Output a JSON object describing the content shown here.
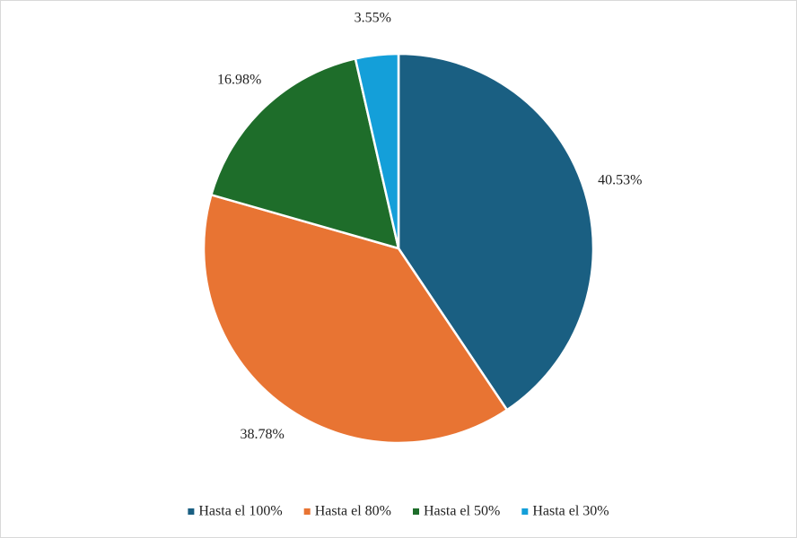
{
  "chart_data": {
    "type": "pie",
    "categories": [
      "Hasta el 100%",
      "Hasta el 80%",
      "Hasta el 50%",
      "Hasta el 30%"
    ],
    "values": [
      40.53,
      38.78,
      16.98,
      3.55
    ],
    "value_labels": [
      "40.53%",
      "38.78%",
      "16.98%",
      "3.55%"
    ],
    "colors": [
      "#1a5f82",
      "#e87433",
      "#1e6d2a",
      "#149fd9"
    ],
    "legend": "bottom"
  }
}
